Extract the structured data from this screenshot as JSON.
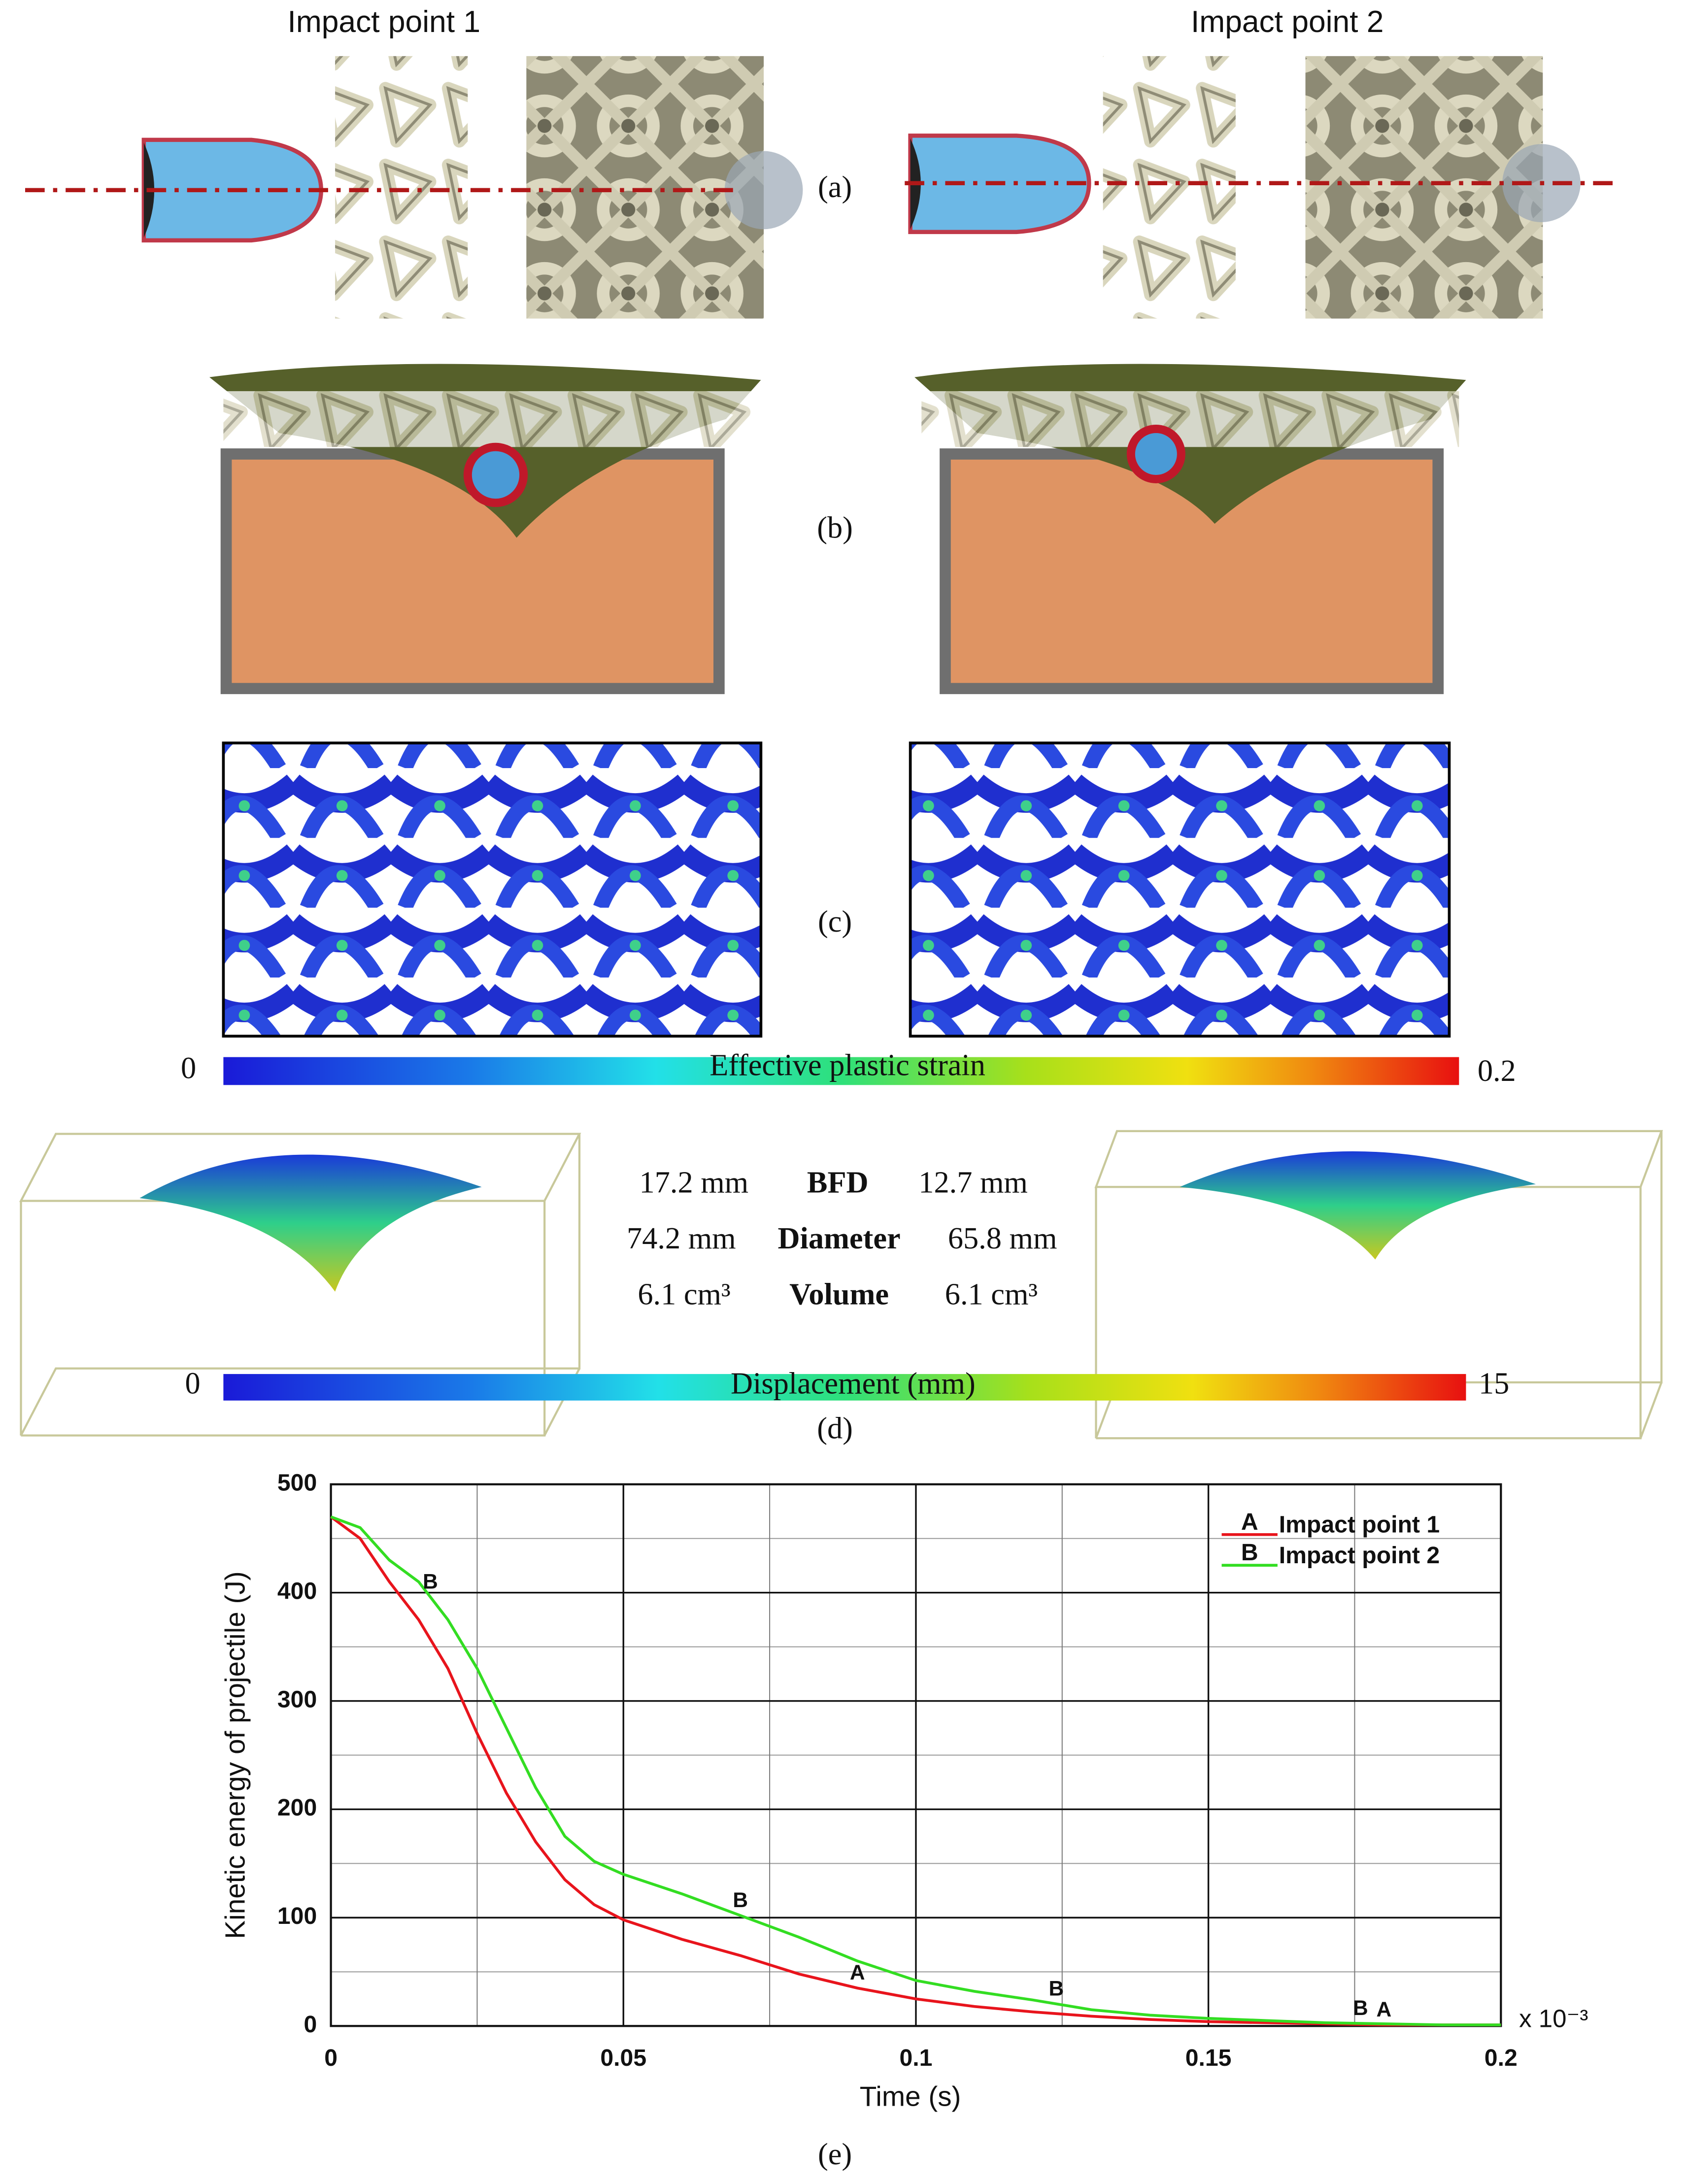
{
  "panels": {
    "a": {
      "label": "(a)",
      "titles": [
        "Impact point 1",
        "Impact point 2"
      ]
    },
    "b": {
      "label": "(b)"
    },
    "c": {
      "label": "(c)",
      "colorbar": {
        "title": "Effective plastic strain",
        "min": 0,
        "max": 0.2
      }
    },
    "d": {
      "label": "(d)",
      "table": [
        [
          "17.2 mm",
          "BFD",
          "12.7 mm"
        ],
        [
          "74.2 mm",
          "Diameter",
          "65.8 mm"
        ],
        [
          "6.1 cm³",
          "Volume",
          "6.1 cm³"
        ]
      ],
      "colorbar": {
        "title": "Displacement (mm)",
        "min": 0,
        "max": 15
      }
    },
    "e": {
      "label": "(e)"
    }
  },
  "chart_data": {
    "type": "line",
    "xlabel": "Time (s)",
    "xunit": "x 10⁻³",
    "ylabel": "Kinetic energy of projectile (J)",
    "x": [
      0,
      0.005,
      0.01,
      0.015,
      0.02,
      0.025,
      0.03,
      0.035,
      0.04,
      0.045,
      0.05,
      0.06,
      0.07,
      0.08,
      0.09,
      0.1,
      0.11,
      0.12,
      0.13,
      0.14,
      0.15,
      0.16,
      0.17,
      0.18,
      0.19,
      0.2
    ],
    "series": [
      {
        "name": "Impact point 1",
        "marker": "A",
        "color": "#e8141c",
        "values": [
          470,
          450,
          410,
          375,
          330,
          270,
          215,
          170,
          135,
          112,
          98,
          80,
          65,
          48,
          35,
          25,
          18,
          13,
          9,
          6,
          4,
          3,
          2,
          1,
          1,
          1
        ]
      },
      {
        "name": "Impact point 2",
        "marker": "B",
        "color": "#33dd22",
        "values": [
          470,
          460,
          430,
          410,
          375,
          330,
          275,
          220,
          175,
          152,
          140,
          122,
          102,
          82,
          60,
          42,
          32,
          24,
          15,
          10,
          7,
          5,
          3,
          2,
          1,
          1
        ]
      }
    ],
    "xlim": [
      0,
      0.2
    ],
    "xticks": [
      0,
      0.05,
      0.1,
      0.15,
      0.2
    ],
    "xminor": [
      0.025,
      0.075,
      0.125,
      0.175
    ],
    "ylim": [
      0,
      500
    ],
    "yticks": [
      0,
      100,
      200,
      300,
      400,
      500
    ],
    "yminor": [
      50,
      150,
      250,
      350,
      450
    ],
    "grid": true,
    "legend": "upper right"
  }
}
